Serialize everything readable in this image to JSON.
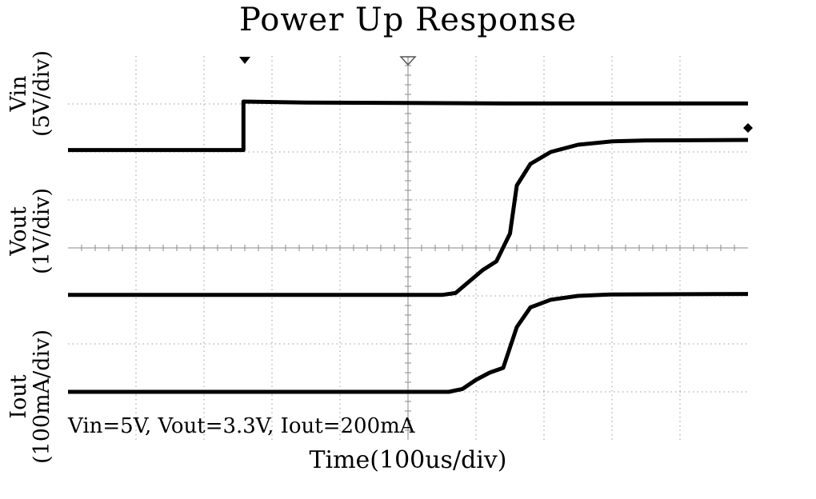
{
  "chart_data": {
    "type": "line",
    "title": "Power Up Response",
    "xlabel": "Time(100us/div)",
    "annotation": "Vin=5V, Vout=3.3V, Iout=200mA",
    "x_divisions": 10,
    "y_divisions": 8,
    "grid": true,
    "trigger_marker_div": 2.6,
    "center_marker_div": 5,
    "series": [
      {
        "name": "Vin",
        "label_line1": "Vin",
        "label_line2": "(5V/div)",
        "line_width": 5,
        "points": [
          [
            0,
            6.04
          ],
          [
            2.58,
            6.04
          ],
          [
            2.58,
            7.05
          ],
          [
            3.5,
            7.03
          ],
          [
            5,
            7.02
          ],
          [
            6.5,
            7.01
          ],
          [
            10,
            7.01
          ]
        ]
      },
      {
        "name": "Vout",
        "label_line1": "Vout",
        "label_line2": "(1V/div)",
        "line_width": 5,
        "points": [
          [
            0,
            3.02
          ],
          [
            5.5,
            3.02
          ],
          [
            5.7,
            3.06
          ],
          [
            5.9,
            3.3
          ],
          [
            6.1,
            3.54
          ],
          [
            6.3,
            3.72
          ],
          [
            6.5,
            4.3
          ],
          [
            6.6,
            5.3
          ],
          [
            6.8,
            5.75
          ],
          [
            7.1,
            6.0
          ],
          [
            7.5,
            6.15
          ],
          [
            8.0,
            6.22
          ],
          [
            8.5,
            6.24
          ],
          [
            10,
            6.25
          ]
        ]
      },
      {
        "name": "Iout",
        "label_line1": "Iout",
        "label_line2": "(100mA/div)",
        "line_width": 5,
        "points": [
          [
            0,
            1.0
          ],
          [
            5.6,
            1.0
          ],
          [
            5.8,
            1.06
          ],
          [
            6.0,
            1.25
          ],
          [
            6.2,
            1.4
          ],
          [
            6.4,
            1.5
          ],
          [
            6.6,
            2.35
          ],
          [
            6.8,
            2.76
          ],
          [
            7.1,
            2.92
          ],
          [
            7.5,
            3.0
          ],
          [
            8.0,
            3.03
          ],
          [
            10,
            3.04
          ]
        ]
      }
    ]
  }
}
